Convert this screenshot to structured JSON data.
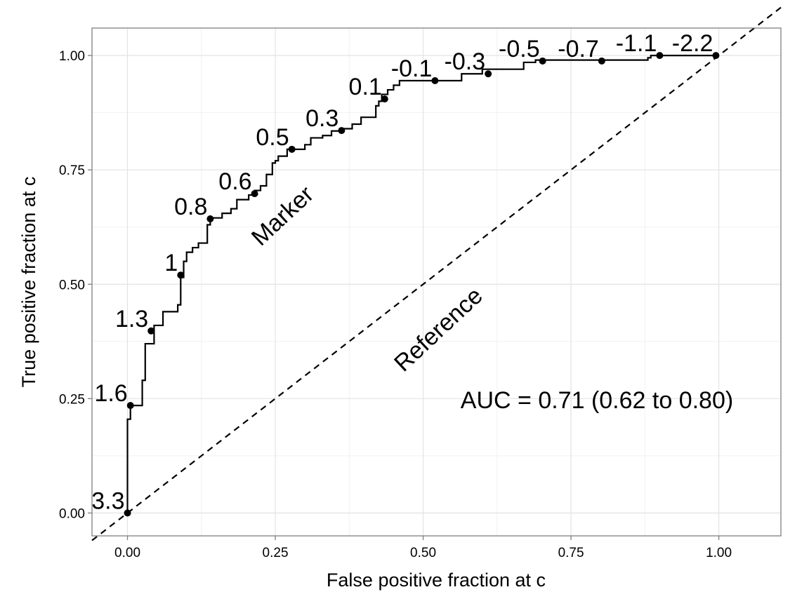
{
  "chart_data": {
    "type": "line",
    "title": "",
    "xlabel": "False positive fraction at c",
    "ylabel": "True positive fraction at c",
    "xlim": [
      -0.06,
      1.105
    ],
    "ylim": [
      -0.05,
      1.06
    ],
    "x_ticks": [
      0,
      0.25,
      0.5,
      0.75,
      1
    ],
    "x_tick_labels": [
      "0.00",
      "0.25",
      "0.50",
      "0.75",
      "1.00"
    ],
    "y_ticks": [
      0,
      0.25,
      0.5,
      0.75,
      1
    ],
    "y_tick_labels": [
      "0.00",
      "0.25",
      "0.50",
      "0.75",
      "1.00"
    ],
    "grid": true,
    "series": [
      {
        "name": "Marker",
        "style": "step",
        "fpf": [
          0.0,
          0.0,
          0.005,
          0.005,
          0.025,
          0.025,
          0.03,
          0.03,
          0.045,
          0.045,
          0.06,
          0.06,
          0.085,
          0.085,
          0.09,
          0.09,
          0.095,
          0.095,
          0.1,
          0.1,
          0.11,
          0.11,
          0.12,
          0.12,
          0.135,
          0.135,
          0.14,
          0.14,
          0.16,
          0.16,
          0.175,
          0.175,
          0.185,
          0.185,
          0.205,
          0.205,
          0.215,
          0.215,
          0.225,
          0.225,
          0.235,
          0.235,
          0.245,
          0.245,
          0.25,
          0.25,
          0.255,
          0.255,
          0.27,
          0.27,
          0.3,
          0.3,
          0.31,
          0.31,
          0.33,
          0.33,
          0.345,
          0.345,
          0.365,
          0.365,
          0.38,
          0.38,
          0.395,
          0.395,
          0.42,
          0.42,
          0.425,
          0.425,
          0.43,
          0.43,
          0.44,
          0.44,
          0.45,
          0.45,
          0.46,
          0.46,
          0.565,
          0.565,
          0.6,
          0.6,
          0.67,
          0.67,
          0.69,
          0.69,
          0.88,
          0.88,
          0.885,
          0.885,
          1.0
        ],
        "tpf": [
          0.0,
          0.205,
          0.205,
          0.235,
          0.235,
          0.29,
          0.29,
          0.37,
          0.37,
          0.41,
          0.41,
          0.44,
          0.44,
          0.455,
          0.455,
          0.515,
          0.515,
          0.55,
          0.55,
          0.57,
          0.57,
          0.58,
          0.58,
          0.59,
          0.59,
          0.63,
          0.63,
          0.645,
          0.645,
          0.655,
          0.655,
          0.665,
          0.665,
          0.685,
          0.685,
          0.695,
          0.695,
          0.705,
          0.705,
          0.715,
          0.715,
          0.74,
          0.74,
          0.765,
          0.765,
          0.77,
          0.77,
          0.78,
          0.78,
          0.795,
          0.795,
          0.805,
          0.805,
          0.82,
          0.82,
          0.825,
          0.825,
          0.835,
          0.835,
          0.84,
          0.84,
          0.85,
          0.85,
          0.865,
          0.865,
          0.89,
          0.89,
          0.9,
          0.9,
          0.915,
          0.915,
          0.925,
          0.925,
          0.935,
          0.935,
          0.945,
          0.945,
          0.96,
          0.96,
          0.97,
          0.97,
          0.985,
          0.985,
          0.99,
          0.99,
          0.995,
          0.995,
          1.0,
          1.0
        ]
      },
      {
        "name": "Reference",
        "style": "dashed",
        "fpf": [
          -0.06,
          1.105
        ],
        "tpf": [
          -0.06,
          1.105
        ]
      }
    ],
    "cutoff_points": [
      {
        "label": "3.3",
        "fpf": 0.0,
        "tpf": 0.0
      },
      {
        "label": "1.6",
        "fpf": 0.005,
        "tpf": 0.235
      },
      {
        "label": "1.3",
        "fpf": 0.04,
        "tpf": 0.398
      },
      {
        "label": "1",
        "fpf": 0.09,
        "tpf": 0.52
      },
      {
        "label": "0.8",
        "fpf": 0.14,
        "tpf": 0.643
      },
      {
        "label": "0.6",
        "fpf": 0.215,
        "tpf": 0.698
      },
      {
        "label": "0.5",
        "fpf": 0.278,
        "tpf": 0.795
      },
      {
        "label": "0.3",
        "fpf": 0.362,
        "tpf": 0.836
      },
      {
        "label": "0.1",
        "fpf": 0.435,
        "tpf": 0.905
      },
      {
        "label": "-0.1",
        "fpf": 0.52,
        "tpf": 0.945
      },
      {
        "label": "-0.3",
        "fpf": 0.61,
        "tpf": 0.96
      },
      {
        "label": "-0.5",
        "fpf": 0.702,
        "tpf": 0.988
      },
      {
        "label": "-0.7",
        "fpf": 0.802,
        "tpf": 0.988
      },
      {
        "label": "-1.1",
        "fpf": 0.9,
        "tpf": 1.0
      },
      {
        "label": "-2.2",
        "fpf": 0.995,
        "tpf": 1.0
      }
    ],
    "annotations": {
      "marker_label": "Marker",
      "reference_label": "Reference",
      "auc_text": "AUC = 0.71 (0.62 to 0.80)"
    }
  }
}
